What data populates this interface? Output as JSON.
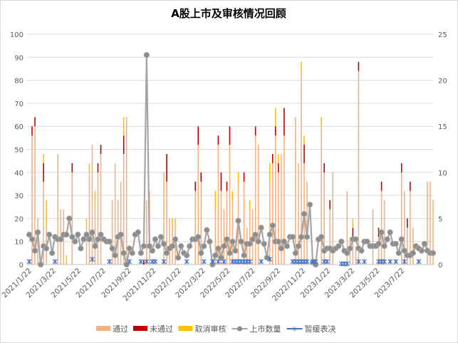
{
  "chart_data": {
    "type": "bar",
    "title": "A股上市及审核情况回顾",
    "start_date": "2021/1/22",
    "weeks": 142,
    "left_axis": {
      "ylim": [
        0,
        100
      ],
      "ticks": [
        "0",
        "10",
        "20",
        "30",
        "40",
        "50",
        "60",
        "70",
        "80",
        "90",
        "100"
      ]
    },
    "right_axis": {
      "ylim": [
        0,
        25
      ],
      "ticks": [
        "0",
        "5",
        "10",
        "15",
        "20",
        "25"
      ]
    },
    "x_tick_labels": [
      "2021/1/22",
      "2021/3/22",
      "2021/5/22",
      "2021/7/22",
      "2021/9/22",
      "2021/11/22",
      "2022/1/22",
      "2022/3/22",
      "2022/5/22",
      "2022/7/22",
      "2022/9/22",
      "2022/11/22",
      "2023/1/22",
      "2023/3/22",
      "2023/5/22",
      "2023/7/22"
    ],
    "legend": {
      "placement": "bottom",
      "items": [
        {
          "label": "通过",
          "kind": "bar",
          "color": "#f4b183"
        },
        {
          "label": "未通过",
          "kind": "bar",
          "color": "#c00000"
        },
        {
          "label": "取消审核",
          "kind": "bar",
          "color": "#ffc000"
        },
        {
          "label": "上市数量",
          "kind": "line",
          "color": "#a5a5a5"
        },
        {
          "label": "暂缓表决",
          "kind": "marker",
          "color": "#4472c4"
        }
      ]
    },
    "bars_axis": "right",
    "bars": [
      [
        1,
        14,
        1,
        0
      ],
      [
        2,
        15,
        1,
        0
      ],
      [
        3,
        5,
        0,
        0
      ],
      [
        5,
        9,
        2,
        1
      ],
      [
        6,
        4,
        0,
        3
      ],
      [
        10,
        12,
        0,
        0
      ],
      [
        11,
        6,
        0,
        0
      ],
      [
        12,
        6,
        0,
        0
      ],
      [
        13,
        0,
        0,
        1
      ],
      [
        15,
        10,
        1,
        0
      ],
      [
        20,
        4,
        0,
        1
      ],
      [
        21,
        10,
        0,
        1
      ],
      [
        22,
        13,
        0,
        0
      ],
      [
        23,
        6,
        0,
        2
      ],
      [
        24,
        10,
        1,
        0
      ],
      [
        25,
        12,
        1,
        0
      ],
      [
        29,
        7,
        0,
        0
      ],
      [
        30,
        11,
        0,
        0
      ],
      [
        31,
        7,
        0,
        0
      ],
      [
        32,
        9,
        0,
        0
      ],
      [
        33,
        12,
        2,
        2
      ],
      [
        34,
        16,
        0,
        0
      ],
      [
        40,
        0,
        0.5,
        0
      ],
      [
        41,
        7,
        0,
        0
      ],
      [
        42,
        8,
        0,
        0
      ],
      [
        47,
        10,
        0,
        0
      ],
      [
        48,
        9,
        3,
        0
      ],
      [
        49,
        5,
        0,
        0
      ],
      [
        50,
        4,
        0,
        1
      ],
      [
        51,
        5,
        0,
        0
      ],
      [
        58,
        8,
        1,
        0
      ],
      [
        59,
        13,
        2,
        0
      ],
      [
        60,
        9,
        1,
        0
      ],
      [
        65,
        6,
        0,
        2
      ],
      [
        66,
        13,
        1,
        0
      ],
      [
        67,
        8,
        2,
        0
      ],
      [
        68,
        6,
        0,
        0
      ],
      [
        69,
        8,
        1,
        0
      ],
      [
        70,
        13,
        2,
        0
      ],
      [
        71,
        7,
        0,
        1
      ],
      [
        73,
        9,
        0,
        1
      ],
      [
        75,
        9,
        1,
        0
      ],
      [
        76,
        4,
        0,
        0
      ],
      [
        77,
        6,
        0,
        1
      ],
      [
        78,
        6,
        0,
        0
      ],
      [
        79,
        14,
        1,
        0
      ],
      [
        80,
        13,
        0,
        0
      ],
      [
        84,
        9,
        0,
        2
      ],
      [
        85,
        11,
        1,
        0
      ],
      [
        86,
        14,
        1,
        2
      ],
      [
        87,
        10,
        1,
        1
      ],
      [
        88,
        12,
        0,
        0
      ],
      [
        89,
        14,
        3,
        0
      ],
      [
        93,
        16,
        0,
        0
      ],
      [
        94,
        11,
        0,
        0
      ],
      [
        95,
        21,
        0,
        1
      ],
      [
        96,
        11,
        2,
        1
      ],
      [
        97,
        9,
        0,
        0
      ],
      [
        102,
        15,
        0,
        1
      ],
      [
        103,
        10,
        1,
        0
      ],
      [
        105,
        6,
        1,
        0
      ],
      [
        106,
        10,
        0,
        0
      ],
      [
        111,
        8,
        0,
        0
      ],
      [
        112,
        3,
        0,
        0
      ],
      [
        113,
        3,
        1,
        1
      ],
      [
        114,
        2,
        0,
        0
      ],
      [
        115,
        21,
        1,
        0
      ],
      [
        120,
        6,
        0,
        0
      ],
      [
        122,
        3,
        1,
        0
      ],
      [
        123,
        8,
        1,
        0
      ],
      [
        124,
        7,
        0,
        0
      ],
      [
        130,
        10,
        1,
        0
      ],
      [
        131,
        8,
        0,
        0
      ],
      [
        132,
        4,
        1,
        0
      ],
      [
        133,
        8,
        1,
        0
      ],
      [
        134,
        4,
        0,
        0
      ],
      [
        139,
        9,
        0,
        0
      ],
      [
        140,
        9,
        0,
        0
      ],
      [
        141,
        7,
        0,
        0
      ]
    ],
    "listings_axis": "left",
    "listings": [
      13,
      11,
      6,
      14,
      0,
      8,
      7,
      13,
      5,
      12,
      11,
      11,
      13,
      13,
      20,
      12,
      10,
      13,
      7,
      11,
      13,
      11,
      14,
      8,
      11,
      13,
      11,
      10,
      10,
      7,
      4,
      12,
      13,
      5,
      0,
      7,
      5,
      13,
      14,
      5,
      8,
      91,
      8,
      6,
      11,
      8,
      12,
      9,
      5,
      7,
      8,
      11,
      3,
      8,
      5,
      4,
      8,
      11,
      11,
      12,
      5,
      8,
      15,
      10,
      0,
      4,
      7,
      3,
      8,
      11,
      5,
      10,
      6,
      19,
      10,
      4,
      9,
      9,
      11,
      13,
      10,
      16,
      9,
      3,
      13,
      17,
      10,
      10,
      7,
      10,
      8,
      12,
      12,
      5,
      8,
      12,
      22,
      12,
      26,
      1,
      0,
      11,
      12,
      6,
      7,
      7,
      6,
      7,
      8,
      10,
      6,
      5,
      7,
      11,
      11,
      7,
      6,
      10,
      10,
      8,
      8,
      8,
      9,
      14,
      8,
      11,
      14,
      9,
      9,
      5,
      11,
      6,
      4,
      4,
      5,
      8,
      7,
      6,
      9,
      6,
      5,
      5
    ],
    "suspended_axis": "left",
    "suspended": [
      [
        0,
        1
      ],
      [
        9,
        1
      ],
      [
        22,
        2
      ],
      [
        28,
        1
      ],
      [
        35,
        1
      ],
      [
        39,
        1
      ],
      [
        41,
        1
      ],
      [
        43,
        1
      ],
      [
        44,
        1
      ],
      [
        47,
        1
      ],
      [
        55,
        1
      ],
      [
        61,
        1
      ],
      [
        64,
        1
      ],
      [
        66,
        1
      ],
      [
        68,
        1
      ],
      [
        71,
        1
      ],
      [
        72,
        1
      ],
      [
        73,
        1
      ],
      [
        74,
        1
      ],
      [
        75,
        1
      ],
      [
        76,
        1
      ],
      [
        77,
        1
      ],
      [
        81,
        1
      ],
      [
        84,
        2
      ],
      [
        92,
        1
      ],
      [
        93,
        1
      ],
      [
        94,
        1
      ],
      [
        95,
        1
      ],
      [
        96,
        1
      ],
      [
        97,
        1
      ],
      [
        99,
        1
      ],
      [
        100,
        1
      ],
      [
        103,
        1
      ],
      [
        104,
        1
      ],
      [
        109,
        0
      ],
      [
        110,
        0
      ],
      [
        111,
        0
      ],
      [
        115,
        1
      ],
      [
        117,
        1
      ],
      [
        122,
        1
      ],
      [
        123,
        1
      ],
      [
        124,
        1
      ],
      [
        126,
        1
      ],
      [
        128,
        1
      ],
      [
        131,
        1
      ],
      [
        136,
        1
      ]
    ]
  }
}
